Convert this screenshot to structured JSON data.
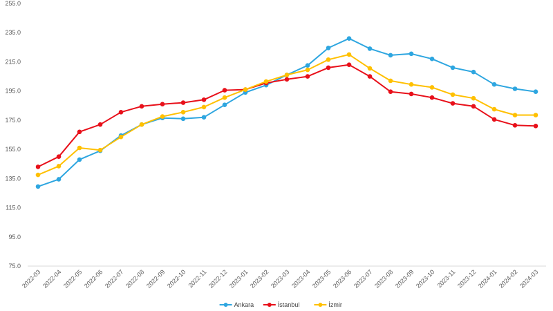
{
  "chart_data": {
    "type": "line",
    "title": "",
    "xlabel": "",
    "ylabel": "",
    "ylim": [
      75.0,
      255.0
    ],
    "y_ticks": [
      "255.0",
      "235.0",
      "215.0",
      "195.0",
      "175.0",
      "155.0",
      "135.0",
      "115.0",
      "95.0",
      "75.0"
    ],
    "grid": false,
    "legend_position": "bottom",
    "categories": [
      "2022-03",
      "2022-04",
      "2022-05",
      "2022-06",
      "2022-07",
      "2022-08",
      "2022-09",
      "2022-10",
      "2022-11",
      "2022-12",
      "2023-01",
      "2023-02",
      "2023-03",
      "2023-04",
      "2023-05",
      "2023-06",
      "2023-07",
      "2023-08",
      "2023-09",
      "2023-10",
      "2023-11",
      "2023-12",
      "2024-01",
      "2024-02",
      "2024-03"
    ],
    "series": [
      {
        "name": "Ankara",
        "color": "#2ea6e0",
        "values": [
          129.5,
          134.5,
          148.0,
          154.0,
          164.5,
          172.0,
          176.5,
          176.0,
          177.0,
          185.5,
          194.0,
          199.0,
          206.0,
          212.5,
          224.5,
          231.0,
          224.0,
          219.5,
          220.5,
          217.0,
          211.0,
          208.0,
          199.5,
          196.5,
          194.5
        ]
      },
      {
        "name": "İstanbul",
        "color": "#e8101a",
        "values": [
          143.0,
          150.0,
          167.0,
          172.0,
          180.5,
          184.5,
          186.0,
          187.0,
          189.0,
          195.5,
          196.0,
          200.5,
          203.0,
          205.0,
          211.0,
          213.0,
          205.0,
          194.5,
          193.0,
          190.5,
          186.5,
          184.5,
          175.5,
          171.5,
          171.0
        ]
      },
      {
        "name": "İzmir",
        "color": "#ffc000",
        "values": [
          137.5,
          143.5,
          156.0,
          154.5,
          163.5,
          172.0,
          177.5,
          180.5,
          184.0,
          190.5,
          196.0,
          201.5,
          206.0,
          209.5,
          216.5,
          220.0,
          210.5,
          202.0,
          199.5,
          197.5,
          192.5,
          190.0,
          182.5,
          178.5,
          178.5
        ]
      }
    ]
  }
}
